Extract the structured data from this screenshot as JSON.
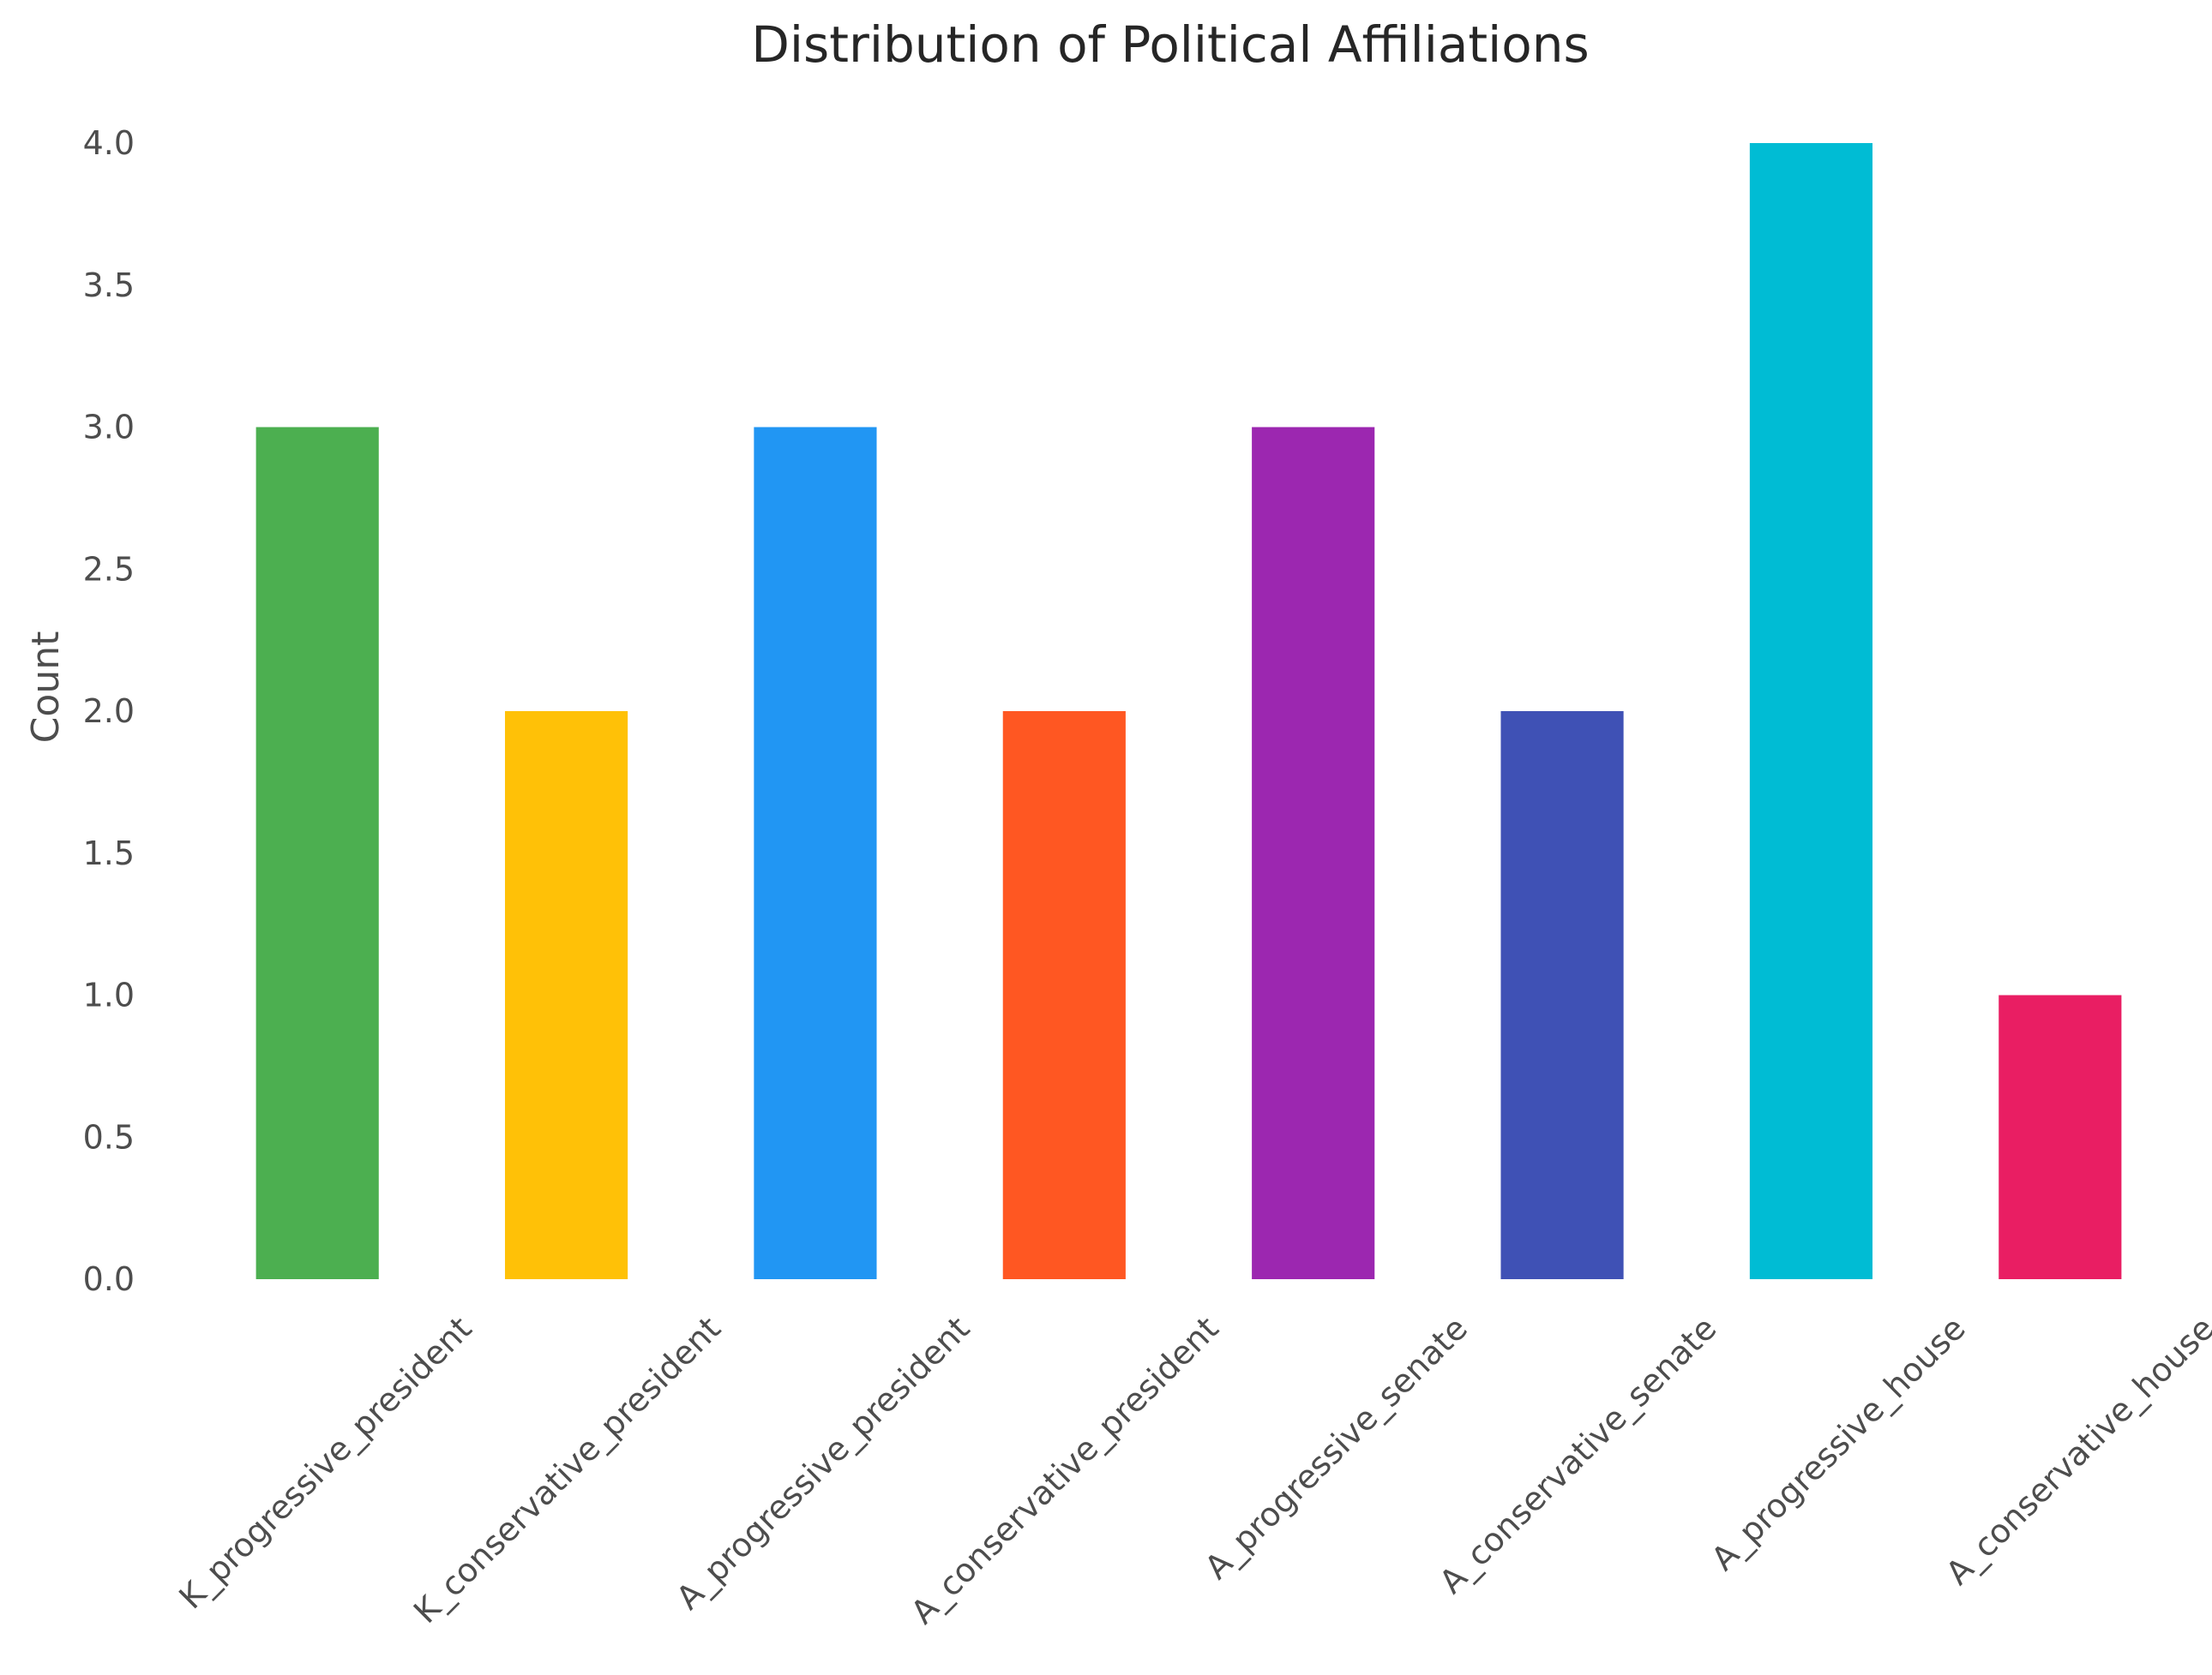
{
  "chart_data": {
    "type": "bar",
    "title": "Distribution of Political Affiliations",
    "xlabel": "",
    "ylabel": "Count",
    "categories": [
      "K_progressive_president",
      "K_conservative_president",
      "A_progressive_president",
      "A_conservative_president",
      "A_progressive_senate",
      "A_conservative_senate",
      "A_progressive_house",
      "A_conservative_house"
    ],
    "values": [
      3,
      2,
      3,
      2,
      3,
      2,
      4,
      1
    ],
    "colors": [
      "#4caf50",
      "#ffc107",
      "#2196f3",
      "#ff5722",
      "#9c27b0",
      "#3f51b5",
      "#00bcd4",
      "#e91e63"
    ],
    "yticks": [
      "0.0",
      "0.5",
      "1.0",
      "1.5",
      "2.0",
      "2.5",
      "3.0",
      "3.5",
      "4.0"
    ],
    "ylim": [
      0,
      4
    ],
    "grid": false,
    "legend": "none"
  }
}
